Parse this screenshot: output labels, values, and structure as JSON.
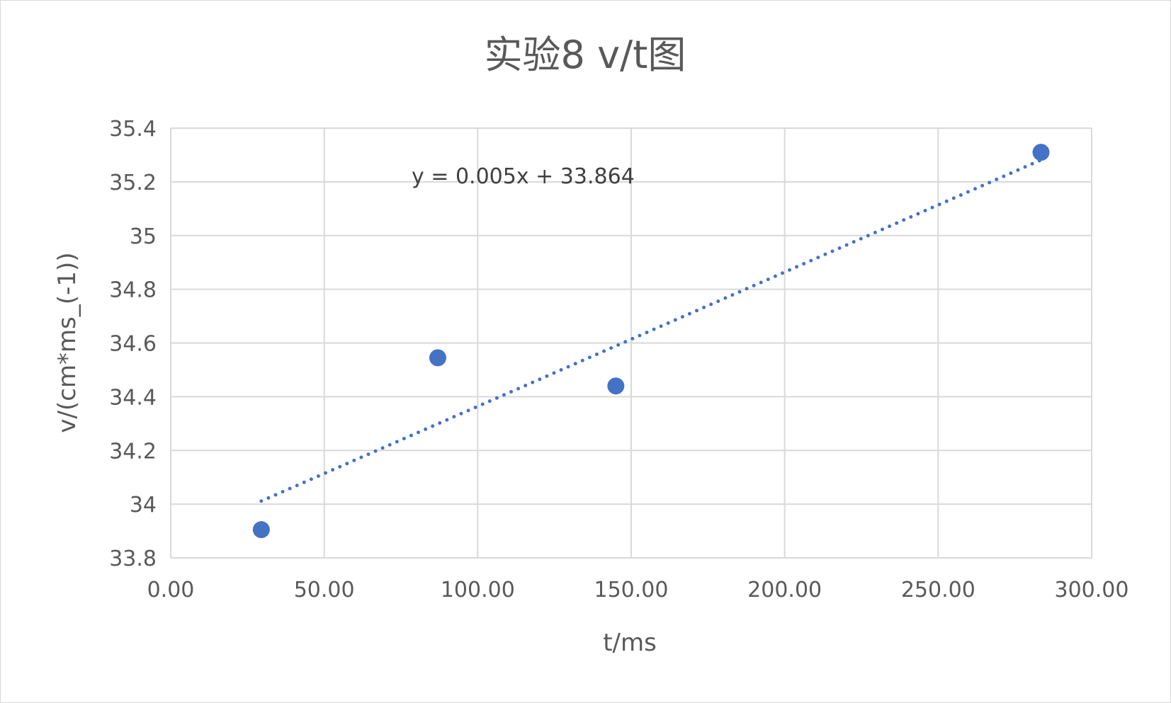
{
  "chart_data": {
    "type": "scatter",
    "title": "实验8 v/t图",
    "xlabel": "t/ms",
    "ylabel": "v/(cm*ms_(-1))",
    "xlim": [
      0,
      300
    ],
    "ylim": [
      33.8,
      35.4
    ],
    "x_ticks": [
      "0.00",
      "50.00",
      "100.00",
      "150.00",
      "200.00",
      "250.00",
      "300.00"
    ],
    "y_ticks": [
      "33.8",
      "34",
      "34.2",
      "34.4",
      "34.6",
      "34.8",
      "35",
      "35.2",
      "35.4"
    ],
    "grid": true,
    "legend": "none",
    "series": [
      {
        "x": [
          29.5,
          87.0,
          145.0,
          283.5
        ],
        "y": [
          33.905,
          34.545,
          34.44,
          35.31
        ],
        "color": "#4472C4"
      }
    ],
    "trendline": {
      "type": "linear",
      "style": "dotted",
      "color": "#4472C4",
      "slope": 0.005,
      "intercept": 33.864,
      "x_range": [
        29.5,
        283.5
      ],
      "equation": "y = 0.005x + 33.864"
    },
    "gridline_color": "#d9d9d9",
    "text_color": "#595959"
  }
}
